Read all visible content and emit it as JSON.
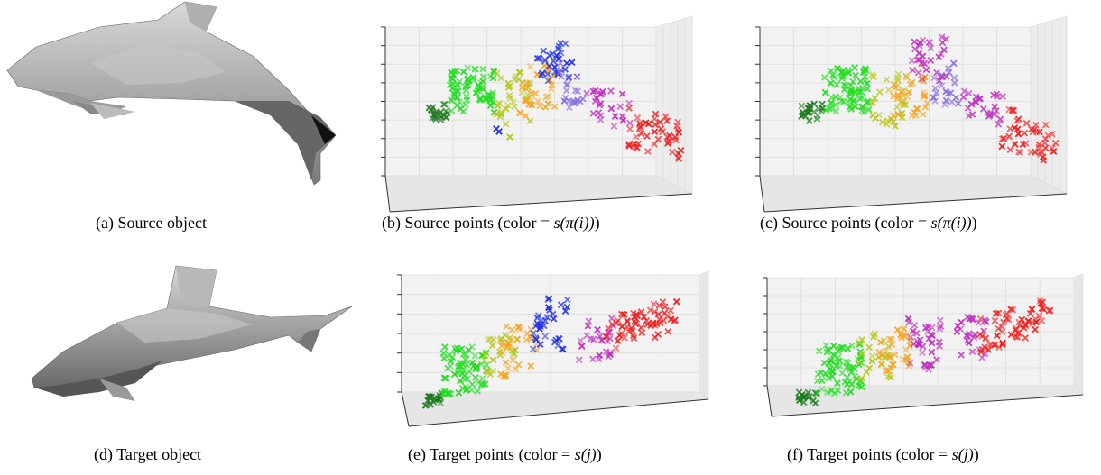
{
  "figure": {
    "captions": {
      "a": {
        "label": "(a)",
        "text": "Source object"
      },
      "b": {
        "label": "(b)",
        "text": "Source points (color = ",
        "math": "s(π(i))",
        "close": ")"
      },
      "c": {
        "label": "(c)",
        "text": "Source points (color = ",
        "math": "s(π(i))",
        "close": ")"
      },
      "d": {
        "label": "(d)",
        "text": "Target object"
      },
      "e": {
        "label": "(e)",
        "text": "Target points (color = ",
        "math": "s(j)",
        "close": ")"
      },
      "f": {
        "label": "(f)",
        "text": "Target points (color = ",
        "math": "s(j)",
        "close": ")"
      }
    },
    "colors": {
      "dark_green": "#1e7a1e",
      "green": "#22dd22",
      "yellow_green": "#b8c81e",
      "orange": "#f5a623",
      "blue": "#2030e0",
      "purple": "#8a6ee0",
      "magenta": "#c030c0",
      "red": "#ee2020",
      "mesh": "#a8a8a8"
    },
    "icons": {
      "marker": "x-marker-icon",
      "object": "dolphin-mesh-icon"
    }
  }
}
